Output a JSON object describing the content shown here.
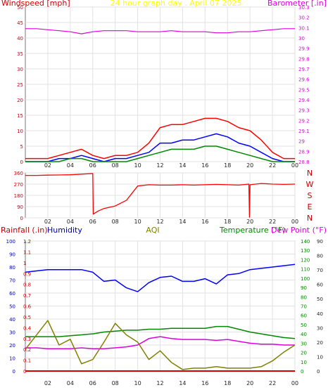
{
  "chart_data": [
    {
      "type": "line",
      "title": "24 hour graph day . April 07 2025",
      "ylabel_left": "Windspeed [mph]",
      "ylabel_right": "Barometer [.in]",
      "x_ticks": [
        "02",
        "04",
        "06",
        "08",
        "10",
        "12",
        "14",
        "16",
        "18",
        "20",
        "22",
        "00"
      ],
      "x": [
        0,
        1,
        2,
        3,
        4,
        5,
        6,
        7,
        8,
        9,
        10,
        11,
        12,
        13,
        14,
        15,
        16,
        17,
        18,
        19,
        20,
        21,
        22,
        23,
        24
      ],
      "ylim_left": [
        0,
        50
      ],
      "left_ticks": [
        "0",
        "5",
        "10",
        "15",
        "20",
        "25",
        "30",
        "35",
        "40",
        "45",
        "50"
      ],
      "ylim_right": [
        28.8,
        30.3
      ],
      "right_ticks": [
        "28.8",
        "28.9",
        "29",
        "29.1",
        "29.2",
        "29.3",
        "29.4",
        "29.5",
        "29.6",
        "29.7",
        "29.8",
        "29.9",
        "30",
        "30.1",
        "30.2",
        "30.3"
      ],
      "grid": true,
      "series": [
        {
          "color": "#dd00dd",
          "axis": "right",
          "values": [
            30.09,
            30.09,
            30.08,
            30.07,
            30.06,
            30.04,
            30.06,
            30.07,
            30.07,
            30.07,
            30.06,
            30.06,
            30.06,
            30.07,
            30.06,
            30.06,
            30.06,
            30.05,
            30.05,
            30.06,
            30.06,
            30.07,
            30.08,
            30.09,
            30.09
          ]
        },
        {
          "color": "#ff0000",
          "axis": "left",
          "values": [
            1,
            1,
            1,
            2,
            3,
            4,
            2,
            1,
            2,
            2,
            3,
            6,
            11,
            12,
            12,
            13,
            14,
            14,
            13,
            11,
            10,
            7,
            3,
            1,
            1
          ]
        },
        {
          "color": "#0000ff",
          "axis": "left",
          "values": [
            0,
            0,
            0,
            1,
            1,
            2,
            1,
            0,
            1,
            1,
            2,
            3,
            6,
            6,
            7,
            7,
            8,
            9,
            8,
            6,
            5,
            3,
            1,
            0,
            0
          ]
        },
        {
          "color": "#008800",
          "axis": "left",
          "values": [
            0,
            0,
            0,
            0,
            1,
            1,
            0,
            0,
            0,
            0,
            1,
            2,
            3,
            4,
            4,
            4,
            5,
            5,
            4,
            3,
            2,
            1,
            0,
            0,
            0
          ]
        }
      ]
    },
    {
      "type": "line",
      "ylabel_right": "",
      "x_ticks": [
        "02",
        "04",
        "06",
        "08",
        "10",
        "12",
        "14",
        "16",
        "18",
        "20",
        "22",
        "00"
      ],
      "x": [
        0,
        1,
        2,
        3,
        4,
        5,
        6,
        6.05,
        6.5,
        7,
        8,
        9,
        10,
        11,
        12,
        13,
        14,
        15,
        16,
        17,
        18,
        19,
        19.9,
        19.95,
        20,
        21,
        22,
        23,
        24
      ],
      "ylim": [
        0,
        360
      ],
      "y_ticks": [
        "0",
        "45",
        "90",
        "135",
        "180",
        "225",
        "270",
        "315",
        "360"
      ],
      "compass_labels": [
        "N",
        "W",
        "S",
        "E",
        "N"
      ],
      "grid": true,
      "series": [
        {
          "color": "#ff0000",
          "values": [
            340,
            340,
            342,
            343,
            345,
            350,
            355,
            30,
            55,
            75,
            95,
            140,
            255,
            265,
            262,
            262,
            265,
            262,
            265,
            268,
            265,
            262,
            270,
            5,
            265,
            275,
            270,
            268,
            270
          ]
        }
      ]
    },
    {
      "type": "line",
      "ylabel_left_1": "Rainfall (.in)",
      "ylabel_left_2": "Humidity",
      "ylabel_center": "AQI",
      "ylabel_right_1": "Temperature (°F)",
      "ylabel_right_2": "Dew Point (°F)",
      "x_ticks": [
        "02",
        "04",
        "06",
        "08",
        "10",
        "12",
        "14",
        "16",
        "18",
        "20",
        "22",
        "00"
      ],
      "x": [
        0,
        1,
        2,
        3,
        4,
        5,
        6,
        7,
        8,
        9,
        10,
        11,
        12,
        13,
        14,
        15,
        16,
        17,
        18,
        19,
        20,
        21,
        22,
        23,
        24
      ],
      "humidity_ticks": [
        "0",
        "10",
        "20",
        "30",
        "40",
        "50",
        "60",
        "70",
        "80",
        "90",
        "100"
      ],
      "rain_ticks": [
        "0",
        "0.1",
        "0.2",
        "0.3",
        "0.4",
        "0.5",
        "0.6",
        "0.7",
        "0.8",
        "0.9",
        "1",
        "1.1",
        "1.2"
      ],
      "temp_ticks": [
        "0",
        "10",
        "20",
        "30",
        "40",
        "50",
        "60",
        "70",
        "80",
        "90",
        "100",
        "110",
        "120",
        "130",
        "140"
      ],
      "aqi_ticks": [
        "0",
        "10",
        "20",
        "30",
        "40",
        "50",
        "60",
        "70",
        "80",
        "90"
      ],
      "grid": true,
      "series": [
        {
          "color": "#0000ff",
          "axis": "humidity",
          "values": [
            76,
            77,
            78,
            78,
            78,
            78,
            76,
            69,
            70,
            64,
            61,
            68,
            72,
            73,
            69,
            69,
            71,
            67,
            74,
            75,
            78,
            79,
            80,
            81,
            82
          ]
        },
        {
          "color": "#008800",
          "axis": "temp",
          "values": [
            37,
            37,
            37,
            37,
            38,
            39,
            40,
            42,
            43,
            44,
            44,
            45,
            45,
            46,
            46,
            46,
            46,
            48,
            48,
            45,
            42,
            40,
            38,
            36,
            35
          ]
        },
        {
          "color": "#dd00dd",
          "axis": "temp",
          "values": [
            25,
            25,
            24,
            24,
            24,
            25,
            24,
            24,
            25,
            26,
            28,
            35,
            37,
            35,
            34,
            34,
            34,
            33,
            34,
            32,
            30,
            29,
            29,
            28,
            28
          ]
        },
        {
          "color": "#808000",
          "axis": "aqi",
          "values": [
            15,
            25,
            35,
            18,
            22,
            5,
            8,
            20,
            33,
            25,
            20,
            8,
            14,
            6,
            1,
            2,
            2,
            3,
            2,
            2,
            2,
            3,
            7,
            13,
            18
          ]
        },
        {
          "color": "#cc0000",
          "axis": "rain",
          "values": [
            0,
            0,
            0,
            0,
            0,
            0,
            0,
            0,
            0,
            0,
            0,
            0,
            0,
            0,
            0,
            0,
            0,
            0,
            0,
            0,
            0,
            0,
            0,
            0,
            0
          ]
        }
      ]
    }
  ]
}
